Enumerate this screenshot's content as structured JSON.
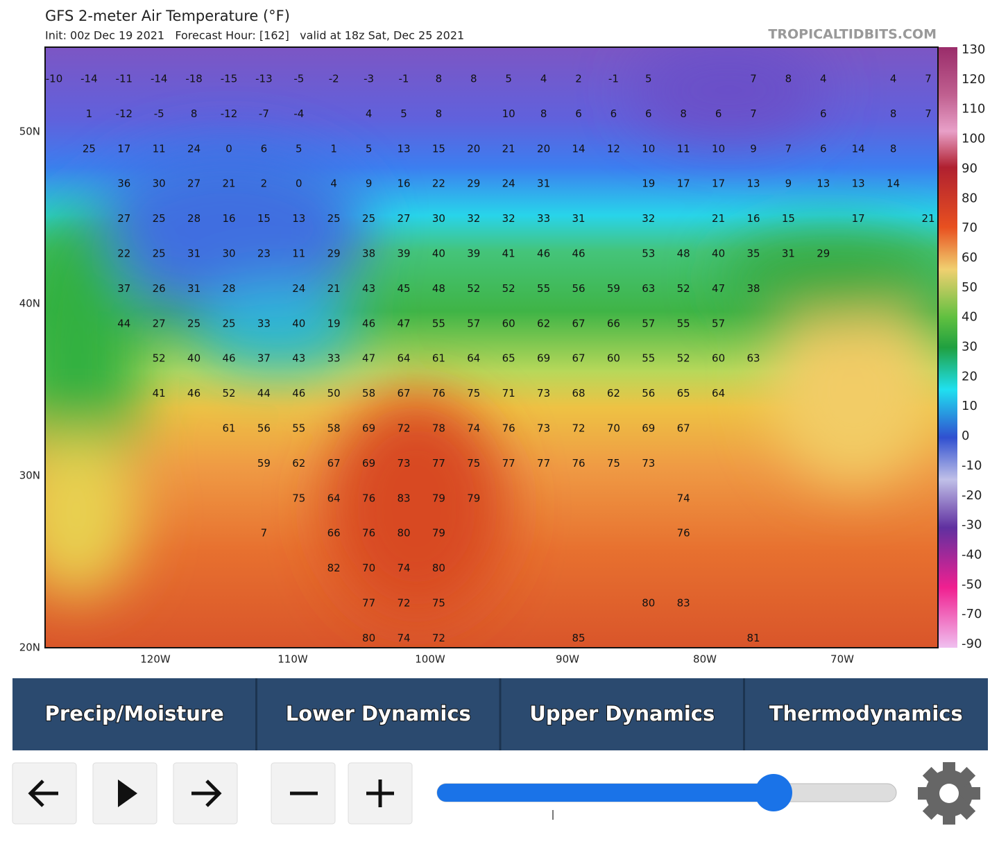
{
  "header": {
    "title": "GFS 2-meter Air Temperature (°F)",
    "subtitle": "Init: 00z Dec 19 2021   Forecast Hour: [162]   valid at 18z Sat, Dec 25 2021",
    "watermark": "TROPICALTIDBITS.COM"
  },
  "map": {
    "lat_labels": [
      "50N",
      "40N",
      "30N",
      "20N"
    ],
    "lon_labels": [
      "120W",
      "110W",
      "100W",
      "90W",
      "80W",
      "70W"
    ],
    "values": [
      [
        -10,
        -14,
        -11,
        -14,
        -18,
        -15,
        -13,
        -5,
        -2,
        -3,
        -1,
        8,
        8,
        5,
        4,
        2,
        -1,
        5,
        null,
        null,
        7,
        8,
        4,
        null,
        4,
        7
      ],
      [
        null,
        1,
        -12,
        -5,
        8,
        -12,
        -7,
        -4,
        null,
        4,
        5,
        8,
        null,
        10,
        8,
        6,
        6,
        6,
        8,
        6,
        7,
        null,
        6,
        null,
        8,
        7
      ],
      [
        null,
        25,
        17,
        11,
        24,
        0,
        6,
        5,
        1,
        5,
        13,
        15,
        20,
        21,
        20,
        14,
        12,
        10,
        11,
        10,
        9,
        7,
        6,
        14,
        8,
        null
      ],
      [
        null,
        null,
        36,
        30,
        27,
        21,
        2,
        0,
        4,
        9,
        16,
        22,
        29,
        24,
        31,
        null,
        null,
        19,
        17,
        17,
        13,
        9,
        13,
        13,
        14,
        null
      ],
      [
        null,
        null,
        27,
        25,
        28,
        16,
        15,
        13,
        25,
        25,
        27,
        30,
        32,
        32,
        33,
        31,
        null,
        32,
        null,
        21,
        16,
        15,
        null,
        17,
        null,
        21
      ],
      [
        null,
        null,
        22,
        25,
        31,
        30,
        23,
        11,
        29,
        38,
        39,
        40,
        39,
        41,
        46,
        46,
        null,
        53,
        48,
        40,
        35,
        31,
        29,
        null,
        null,
        null
      ],
      [
        null,
        null,
        37,
        26,
        31,
        28,
        null,
        24,
        21,
        43,
        45,
        48,
        52,
        52,
        55,
        56,
        59,
        63,
        52,
        47,
        38,
        null,
        null,
        null,
        null,
        null
      ],
      [
        null,
        null,
        44,
        27,
        25,
        25,
        33,
        40,
        19,
        46,
        47,
        55,
        57,
        60,
        62,
        67,
        66,
        57,
        55,
        57,
        null,
        null,
        null,
        null,
        null,
        null
      ],
      [
        null,
        null,
        null,
        52,
        40,
        46,
        37,
        43,
        33,
        47,
        64,
        61,
        64,
        65,
        69,
        67,
        60,
        55,
        52,
        60,
        63,
        null,
        null,
        null,
        null,
        null
      ],
      [
        null,
        null,
        null,
        41,
        46,
        52,
        44,
        46,
        50,
        58,
        67,
        76,
        75,
        71,
        73,
        68,
        62,
        56,
        65,
        64,
        null,
        null,
        null,
        null,
        null,
        null
      ],
      [
        null,
        null,
        null,
        null,
        null,
        61,
        56,
        55,
        58,
        69,
        72,
        78,
        74,
        76,
        73,
        72,
        70,
        69,
        67,
        null,
        null,
        null,
        null,
        null,
        null,
        null
      ],
      [
        null,
        null,
        null,
        null,
        null,
        null,
        59,
        62,
        67,
        69,
        73,
        77,
        75,
        77,
        77,
        76,
        75,
        73,
        null,
        null,
        null,
        null,
        null,
        null,
        null,
        null
      ],
      [
        null,
        null,
        null,
        null,
        null,
        null,
        null,
        75,
        64,
        76,
        83,
        79,
        79,
        null,
        null,
        null,
        null,
        null,
        74,
        null,
        null,
        null,
        null,
        null,
        null,
        null
      ],
      [
        null,
        null,
        null,
        null,
        null,
        null,
        7,
        null,
        66,
        76,
        80,
        79,
        null,
        null,
        null,
        null,
        null,
        null,
        76,
        null,
        null,
        null,
        null,
        null,
        null,
        null
      ],
      [
        null,
        null,
        null,
        null,
        null,
        null,
        null,
        null,
        82,
        70,
        74,
        80,
        null,
        null,
        null,
        null,
        null,
        null,
        null,
        null,
        null,
        null,
        null,
        null,
        null,
        null
      ],
      [
        null,
        null,
        null,
        null,
        null,
        null,
        null,
        null,
        null,
        77,
        72,
        75,
        null,
        null,
        null,
        null,
        null,
        80,
        83,
        null,
        null,
        null,
        null,
        null,
        null,
        null
      ],
      [
        null,
        null,
        null,
        null,
        null,
        null,
        null,
        null,
        null,
        80,
        74,
        72,
        null,
        null,
        null,
        85,
        null,
        null,
        null,
        null,
        81,
        null,
        null,
        null,
        null,
        null
      ]
    ]
  },
  "colorbar": {
    "ticks": [
      130,
      120,
      110,
      100,
      90,
      80,
      70,
      60,
      50,
      40,
      30,
      20,
      10,
      0,
      -10,
      -20,
      -30,
      -40,
      -50,
      -70,
      -90
    ]
  },
  "nav": {
    "tabs": [
      "Precip/Moisture",
      "Lower Dynamics",
      "Upper Dynamics",
      "Thermodynamics"
    ]
  }
}
